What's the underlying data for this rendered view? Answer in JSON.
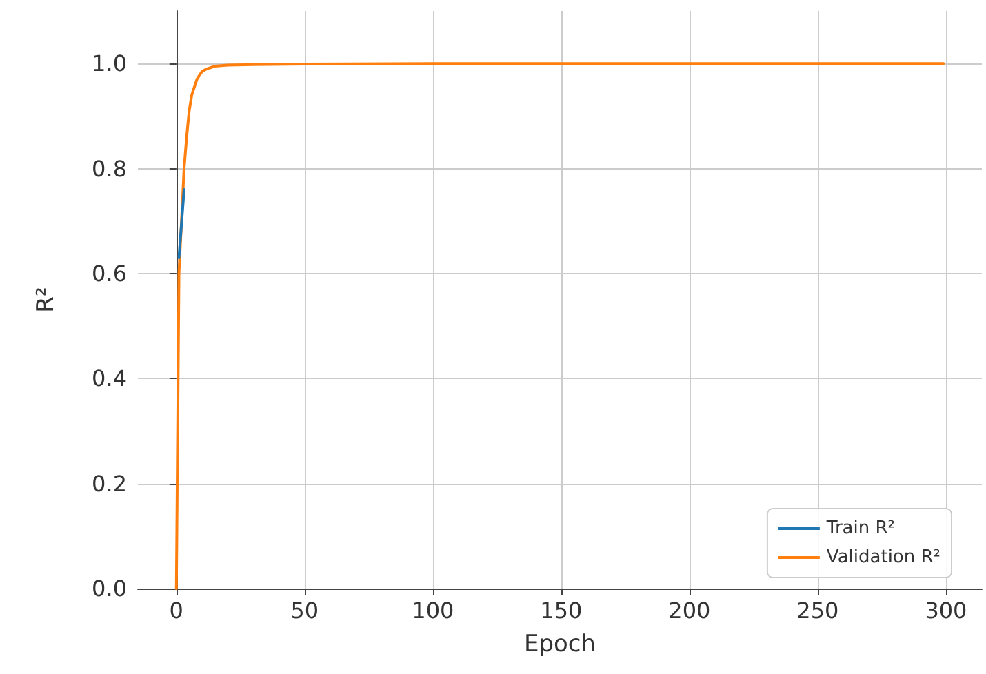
{
  "chart_data": {
    "type": "line",
    "xlabel": "Epoch",
    "ylabel": "R²",
    "xlim": [
      -15,
      314
    ],
    "ylim": [
      0,
      1.1
    ],
    "xticks": [
      0,
      50,
      100,
      150,
      200,
      250,
      300
    ],
    "yticks": [
      {
        "value": 0,
        "label": "0.0"
      },
      0.2,
      0.4,
      0.6,
      0.8,
      {
        "value": 1,
        "label": "1.0"
      }
    ],
    "grid": true,
    "legend": "bottom right",
    "marker": "none",
    "line_style": "solid",
    "series": [
      {
        "name": "Train R²",
        "color": "#1f77b4",
        "x": [
          1,
          3
        ],
        "values": [
          0.63,
          0.76
        ]
      },
      {
        "name": "Validation R²",
        "color": "#ff7f0e",
        "x": [
          0,
          1,
          2,
          3,
          4,
          5,
          6,
          8,
          10,
          12,
          15,
          20,
          30,
          50,
          100,
          150,
          200,
          250,
          299
        ],
        "values": [
          0,
          0.6,
          0.7,
          0.8,
          0.86,
          0.91,
          0.94,
          0.97,
          0.985,
          0.99,
          0.995,
          0.997,
          0.998,
          0.999,
          1.0,
          1.0,
          1.0,
          1.0,
          1.0
        ]
      }
    ]
  }
}
